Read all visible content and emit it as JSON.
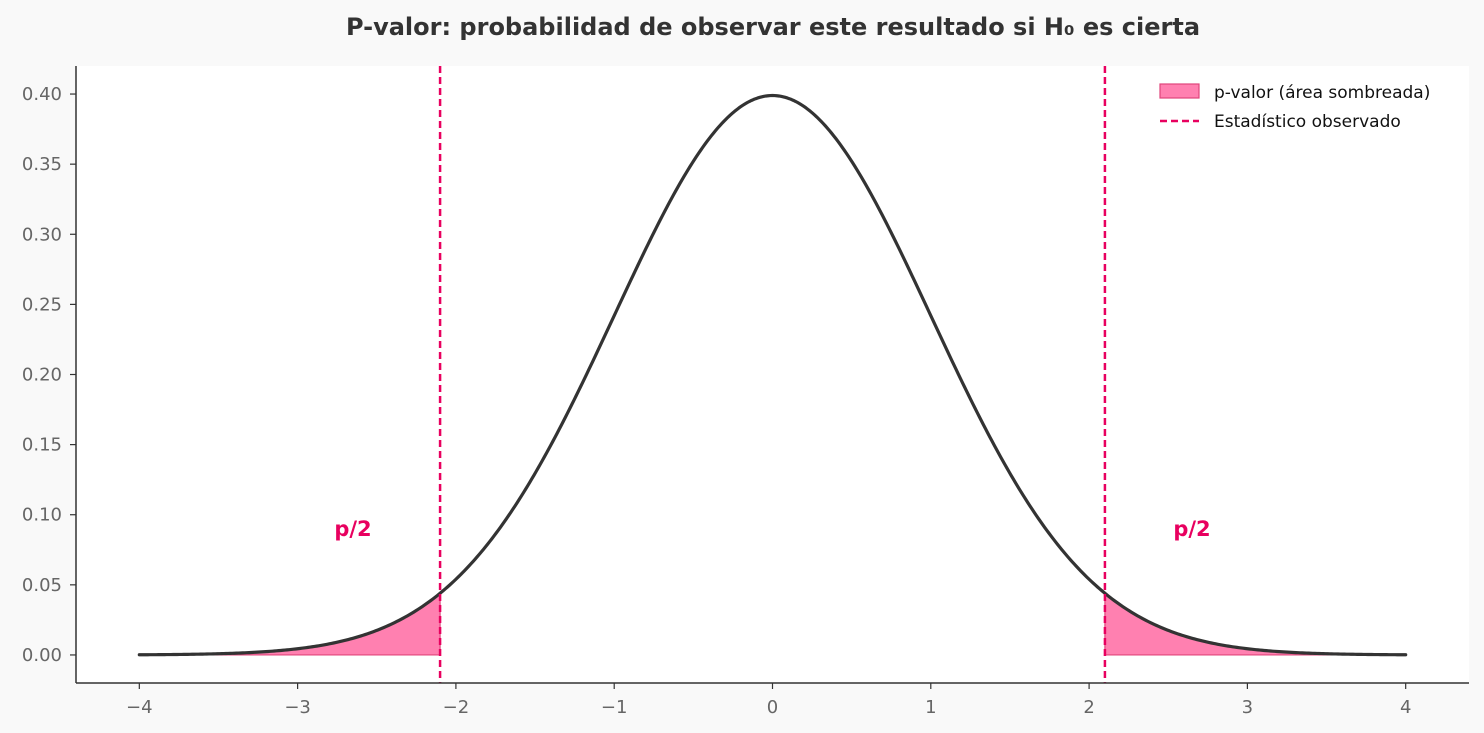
{
  "chart_data": {
    "type": "area",
    "title": "P-valor: probabilidad de observar este resultado si H₀ es cierta",
    "xlabel": "",
    "ylabel": "",
    "xlim": [
      -4.4,
      4.4
    ],
    "ylim": [
      -0.02,
      0.42
    ],
    "x_ticks": [
      -4,
      -3,
      -2,
      -1,
      0,
      1,
      2,
      3,
      4
    ],
    "x_tick_labels": [
      "−4",
      "−3",
      "−2",
      "−1",
      "0",
      "1",
      "2",
      "3",
      "4"
    ],
    "y_ticks": [
      0.0,
      0.05,
      0.1,
      0.15,
      0.2,
      0.25,
      0.3,
      0.35,
      0.4
    ],
    "y_tick_labels": [
      "0.00",
      "0.05",
      "0.10",
      "0.15",
      "0.20",
      "0.25",
      "0.30",
      "0.35",
      "0.40"
    ],
    "grid": false,
    "legend_position": "top-right",
    "curve": {
      "distribution": "standard normal",
      "mean": 0,
      "sd": 1,
      "x_range": [
        -4,
        4
      ],
      "color": "#333333"
    },
    "shaded_regions": [
      {
        "x_start": -4,
        "x_end": -2.1
      },
      {
        "x_start": 2.1,
        "x_end": 4
      }
    ],
    "observed_statistic": [
      -2.1,
      2.1
    ],
    "legend": [
      {
        "label": "p-valor (área sombreada)",
        "kind": "patch"
      },
      {
        "label": "Estadístico observado",
        "kind": "dashed-line"
      }
    ],
    "annotations": [
      {
        "text": "p/2",
        "x": -2.65,
        "y": 0.085
      },
      {
        "text": "p/2",
        "x": 2.65,
        "y": 0.085
      }
    ],
    "colors": {
      "curve": "#333333",
      "shade_fill": "#ff80b0",
      "shade_edge": "#e0457b",
      "observed_line": "#e8005f",
      "annotation": "#e8005f",
      "axis": "#333333",
      "tick_label": "#666666",
      "figure_bg": "#f9f9f9",
      "plot_bg": "#ffffff"
    }
  }
}
